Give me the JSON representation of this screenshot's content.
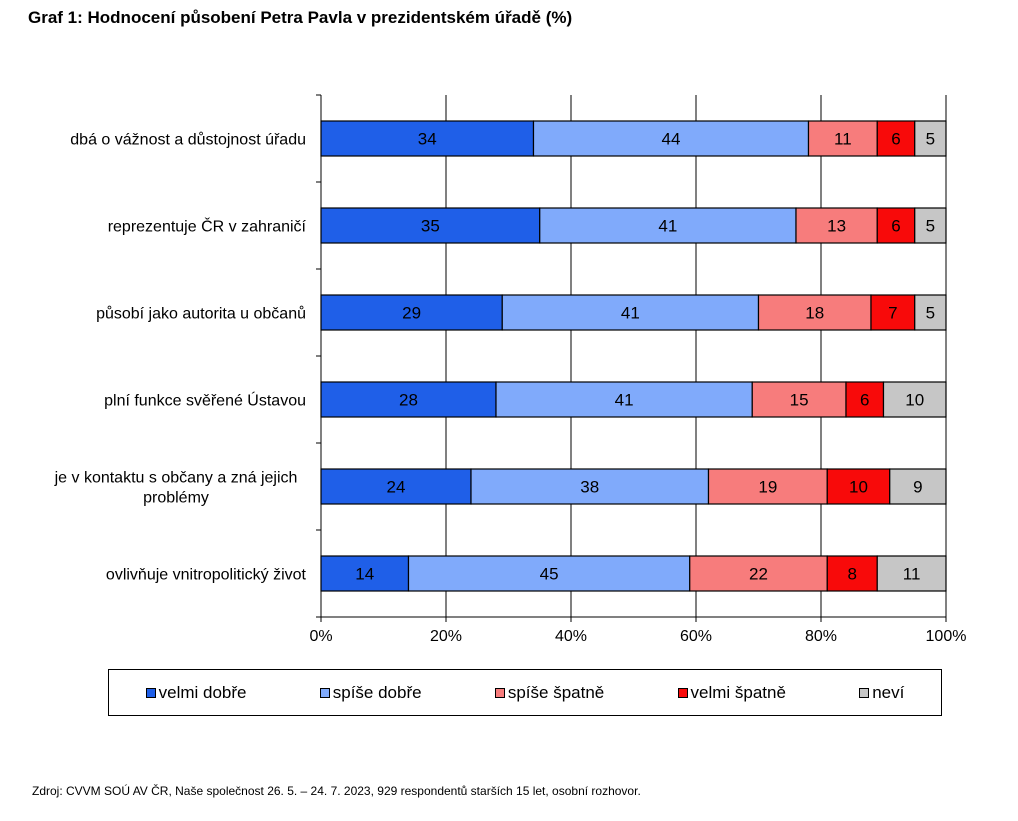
{
  "title": "Graf 1: Hodnocení působení Petra Pavla v prezidentském úřadě (%)",
  "source": "Zdroj: CVVM SOÚ AV ČR, Naše společnost 26. 5. – 24. 7. 2023, 929 respondentů starších 15 let, osobní rozhovor.",
  "chart_data": {
    "type": "bar",
    "orientation": "horizontal",
    "stacked": "percent",
    "categories": [
      "dbá o vážnost a důstojnost úřadu",
      "reprezentuje ČR v zahraničí",
      "působí jako autorita u občanů",
      "plní funkce svěřené Ústavou",
      "je v kontaktu s občany a zná jejich problémy",
      "ovlivňuje vnitropolitický život"
    ],
    "series": [
      {
        "name": "velmi dobře",
        "color": "#1f5fe8",
        "values": [
          34,
          35,
          29,
          28,
          24,
          14
        ]
      },
      {
        "name": "spíše dobře",
        "color": "#80aafb",
        "values": [
          44,
          41,
          41,
          41,
          38,
          45
        ]
      },
      {
        "name": "spíše špatně",
        "color": "#f77c7c",
        "values": [
          11,
          13,
          18,
          15,
          19,
          22
        ]
      },
      {
        "name": "velmi špatně",
        "color": "#f80a0a",
        "values": [
          6,
          6,
          7,
          6,
          10,
          8
        ]
      },
      {
        "name": "neví",
        "color": "#c6c6c6",
        "values": [
          5,
          5,
          5,
          10,
          9,
          11
        ]
      }
    ],
    "x_ticks": [
      "0%",
      "20%",
      "40%",
      "60%",
      "80%",
      "100%"
    ],
    "xlim": [
      0,
      100
    ],
    "grid": "vertical",
    "legend_position": "bottom"
  }
}
